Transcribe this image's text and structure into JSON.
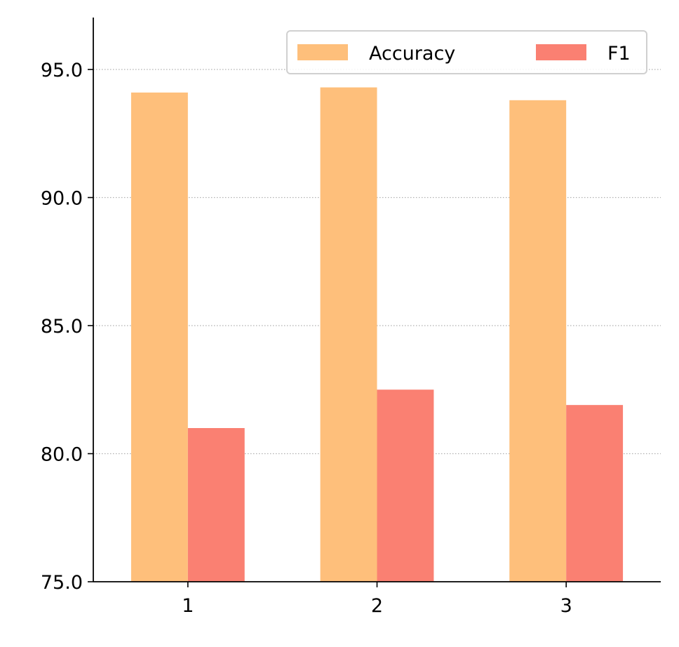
{
  "chart_data": {
    "type": "bar",
    "title": "",
    "xlabel": "",
    "ylabel": "",
    "categories": [
      "1",
      "2",
      "3"
    ],
    "series": [
      {
        "name": "Accuracy",
        "values": [
          94.1,
          94.3,
          93.8
        ],
        "color": "#FEBF7B"
      },
      {
        "name": "F1",
        "values": [
          81.0,
          82.5,
          81.9
        ],
        "color": "#FA8072"
      }
    ],
    "ylim": [
      75.0,
      97.0
    ],
    "yticks": [
      "75.0",
      "80.0",
      "85.0",
      "90.0",
      "95.0"
    ],
    "grid": "horizontal dotted",
    "legend": {
      "placement": "top-right",
      "columns": 2
    }
  }
}
